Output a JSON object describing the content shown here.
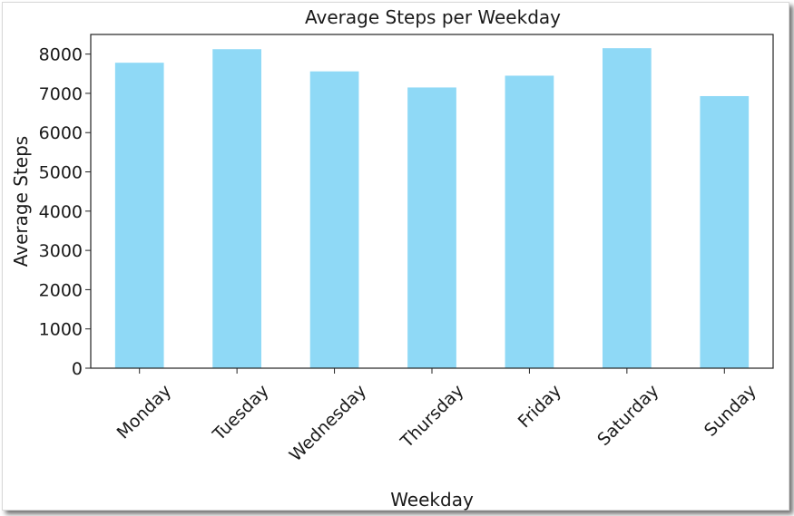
{
  "chart_data": {
    "type": "bar",
    "title": "Average Steps per Weekday",
    "xlabel": "Weekday",
    "ylabel": "Average Steps",
    "categories": [
      "Monday",
      "Tuesday",
      "Wednesday",
      "Thursday",
      "Friday",
      "Saturday",
      "Sunday"
    ],
    "values": [
      7780,
      8125,
      7560,
      7150,
      7450,
      8150,
      6930
    ],
    "ylim": [
      0,
      8500
    ],
    "yticks": [
      0,
      1000,
      2000,
      3000,
      4000,
      5000,
      6000,
      7000,
      8000
    ],
    "ytick_labels": [
      "0",
      "1000",
      "2000",
      "3000",
      "4000",
      "5000",
      "6000",
      "7000",
      "8000"
    ],
    "grid": false,
    "legend": "none",
    "bar_color": "#8fd9f6",
    "x_tick_rotation": -45
  }
}
